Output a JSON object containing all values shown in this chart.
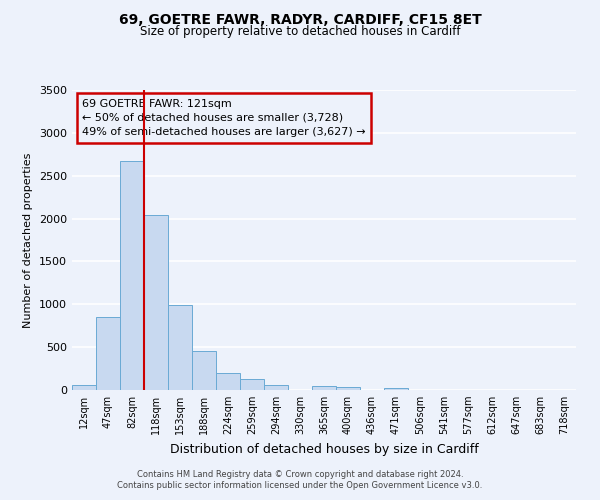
{
  "title": "69, GOETRE FAWR, RADYR, CARDIFF, CF15 8ET",
  "subtitle": "Size of property relative to detached houses in Cardiff",
  "xlabel": "Distribution of detached houses by size in Cardiff",
  "ylabel": "Number of detached properties",
  "bar_labels": [
    "12sqm",
    "47sqm",
    "82sqm",
    "118sqm",
    "153sqm",
    "188sqm",
    "224sqm",
    "259sqm",
    "294sqm",
    "330sqm",
    "365sqm",
    "400sqm",
    "436sqm",
    "471sqm",
    "506sqm",
    "541sqm",
    "577sqm",
    "612sqm",
    "647sqm",
    "683sqm",
    "718sqm"
  ],
  "bar_values": [
    55,
    850,
    2670,
    2040,
    995,
    450,
    200,
    130,
    55,
    0,
    45,
    30,
    0,
    20,
    0,
    0,
    0,
    0,
    0,
    0,
    0
  ],
  "bar_color": "#c8d9f0",
  "bar_edgecolor": "#6aaad4",
  "vline_x": 3,
  "vline_color": "#cc0000",
  "ylim": [
    0,
    3500
  ],
  "yticks": [
    0,
    500,
    1000,
    1500,
    2000,
    2500,
    3000,
    3500
  ],
  "annotation_text": "69 GOETRE FAWR: 121sqm\n← 50% of detached houses are smaller (3,728)\n49% of semi-detached houses are larger (3,627) →",
  "annotation_box_edgecolor": "#cc0000",
  "footer1": "Contains HM Land Registry data © Crown copyright and database right 2024.",
  "footer2": "Contains public sector information licensed under the Open Government Licence v3.0.",
  "background_color": "#edf2fb",
  "grid_color": "#ffffff",
  "num_bars": 21
}
